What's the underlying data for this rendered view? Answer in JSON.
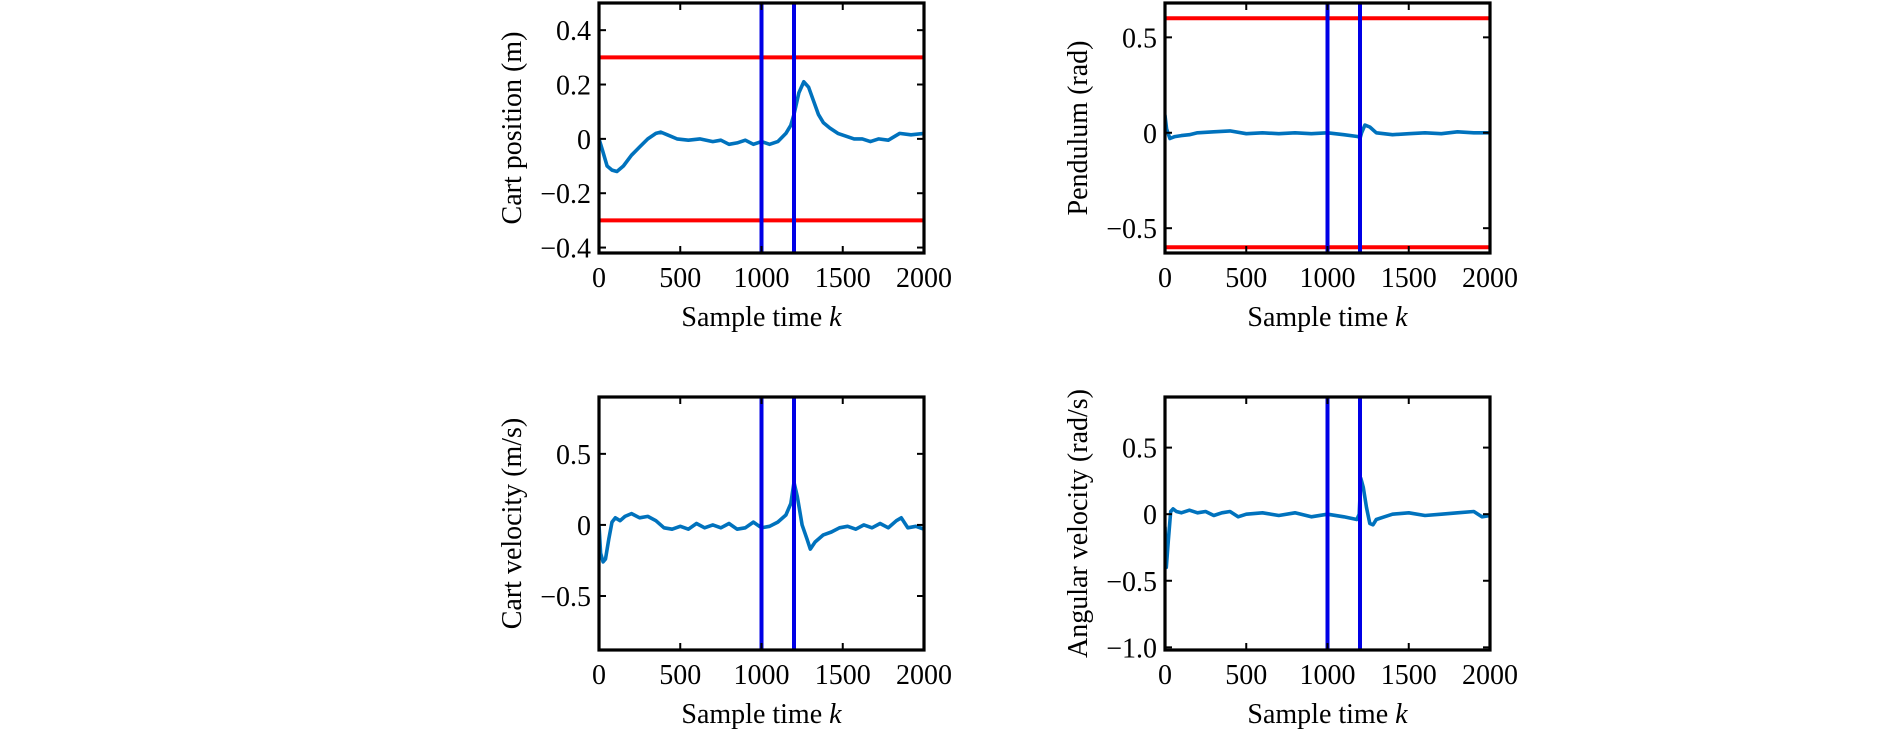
{
  "figure": {
    "colors": {
      "series": "#0072BD",
      "constraint": "#FF0000",
      "marker": "#0000E6",
      "axis": "#000000"
    }
  },
  "chart_data": [
    {
      "type": "line",
      "id": "cart-position",
      "xlabel": "Sample time",
      "xlabel_var": "k",
      "ylabel": "Cart position (m)",
      "xlim": [
        0,
        2000
      ],
      "ylim": [
        -0.42,
        0.5
      ],
      "xticks": [
        0,
        500,
        1000,
        1500,
        2000
      ],
      "xtick_labels": [
        "0",
        "500",
        "1000",
        "1500",
        "2000"
      ],
      "yticks": [
        -0.4,
        -0.2,
        0,
        0.2,
        0.4
      ],
      "ytick_labels": [
        "−0.4",
        "−0.2",
        "0",
        "0.2",
        "0.4"
      ],
      "hlines": [
        0.3,
        -0.3
      ],
      "vlines": [
        1000,
        1200
      ],
      "grid": false,
      "series": [
        {
          "x": [
            0,
            20,
            50,
            80,
            110,
            150,
            200,
            250,
            300,
            350,
            380,
            420,
            480,
            550,
            620,
            700,
            750,
            800,
            850,
            900,
            950,
            1000,
            1050,
            1100,
            1150,
            1180,
            1200,
            1230,
            1260,
            1290,
            1320,
            1350,
            1380,
            1420,
            1470,
            1520,
            1570,
            1620,
            1670,
            1720,
            1780,
            1850,
            1920,
            2000
          ],
          "y": [
            0.0,
            -0.04,
            -0.1,
            -0.115,
            -0.12,
            -0.1,
            -0.06,
            -0.03,
            0.0,
            0.02,
            0.025,
            0.015,
            0.0,
            -0.005,
            0.0,
            -0.01,
            -0.005,
            -0.02,
            -0.015,
            -0.005,
            -0.02,
            -0.01,
            -0.02,
            -0.01,
            0.02,
            0.05,
            0.09,
            0.17,
            0.21,
            0.19,
            0.14,
            0.09,
            0.06,
            0.04,
            0.02,
            0.01,
            0.0,
            0.0,
            -0.01,
            0.0,
            -0.005,
            0.02,
            0.015,
            0.02
          ]
        }
      ]
    },
    {
      "type": "line",
      "id": "pendulum",
      "xlabel": "Sample time",
      "xlabel_var": "k",
      "ylabel": "Pendulum (rad)",
      "xlim": [
        0,
        2000
      ],
      "ylim": [
        -0.63,
        0.68
      ],
      "xticks": [
        0,
        500,
        1000,
        1500,
        2000
      ],
      "xtick_labels": [
        "0",
        "500",
        "1000",
        "1500",
        "2000"
      ],
      "yticks": [
        -0.5,
        0,
        0.5
      ],
      "ytick_labels": [
        "−0.5",
        "0",
        "0.5"
      ],
      "hlines": [
        0.6,
        -0.6
      ],
      "vlines": [
        1000,
        1200
      ],
      "grid": false,
      "series": [
        {
          "x": [
            0,
            10,
            30,
            60,
            100,
            150,
            200,
            300,
            400,
            500,
            600,
            700,
            800,
            900,
            1000,
            1100,
            1190,
            1200,
            1210,
            1230,
            1260,
            1300,
            1400,
            1500,
            1600,
            1700,
            1800,
            1900,
            2000
          ],
          "y": [
            0.09,
            0.02,
            -0.03,
            -0.02,
            -0.015,
            -0.01,
            0.0,
            0.005,
            0.01,
            -0.005,
            0.0,
            -0.005,
            0.0,
            -0.005,
            0.0,
            -0.01,
            -0.02,
            -0.03,
            0.0,
            0.04,
            0.03,
            0.0,
            -0.01,
            -0.005,
            0.0,
            -0.005,
            0.005,
            0.0,
            0.0
          ]
        }
      ]
    },
    {
      "type": "line",
      "id": "cart-velocity",
      "xlabel": "Sample time",
      "xlabel_var": "k",
      "ylabel": "Cart velocity (m/s)",
      "xlim": [
        0,
        2000
      ],
      "ylim": [
        -0.88,
        0.9
      ],
      "xticks": [
        0,
        500,
        1000,
        1500,
        2000
      ],
      "xtick_labels": [
        "0",
        "500",
        "1000",
        "1500",
        "2000"
      ],
      "yticks": [
        -0.5,
        0,
        0.5
      ],
      "ytick_labels": [
        "−0.5",
        "0",
        "0.5"
      ],
      "hlines": [],
      "vlines": [
        1000,
        1200
      ],
      "grid": false,
      "series": [
        {
          "x": [
            0,
            10,
            25,
            40,
            60,
            80,
            100,
            130,
            160,
            200,
            250,
            300,
            350,
            400,
            450,
            500,
            550,
            600,
            650,
            700,
            750,
            800,
            850,
            900,
            950,
            1000,
            1050,
            1100,
            1150,
            1180,
            1200,
            1220,
            1250,
            1280,
            1300,
            1330,
            1380,
            1430,
            1480,
            1530,
            1580,
            1630,
            1680,
            1730,
            1780,
            1830,
            1860,
            1900,
            1950,
            2000
          ],
          "y": [
            0.0,
            -0.2,
            -0.26,
            -0.24,
            -0.1,
            0.02,
            0.05,
            0.03,
            0.06,
            0.08,
            0.05,
            0.06,
            0.03,
            -0.02,
            -0.03,
            -0.01,
            -0.03,
            0.01,
            -0.02,
            0.0,
            -0.02,
            0.01,
            -0.03,
            -0.02,
            0.02,
            -0.02,
            -0.01,
            0.02,
            0.07,
            0.15,
            0.3,
            0.2,
            0.0,
            -0.1,
            -0.17,
            -0.12,
            -0.07,
            -0.05,
            -0.02,
            -0.01,
            -0.03,
            0.0,
            -0.02,
            0.01,
            -0.02,
            0.03,
            0.05,
            -0.02,
            -0.01,
            -0.03
          ]
        }
      ]
    },
    {
      "type": "line",
      "id": "angular-velocity",
      "xlabel": "Sample time",
      "xlabel_var": "k",
      "ylabel": "Angular velocity (rad/s)",
      "xlim": [
        0,
        2000
      ],
      "ylim": [
        -1.02,
        0.88
      ],
      "xticks": [
        0,
        500,
        1000,
        1500,
        2000
      ],
      "xtick_labels": [
        "0",
        "500",
        "1000",
        "1500",
        "2000"
      ],
      "yticks": [
        -1,
        -0.5,
        0,
        0.5
      ],
      "ytick_labels": [
        "−1.0",
        "−0.5",
        "0",
        "0.5"
      ],
      "hlines": [],
      "vlines": [
        1000,
        1200
      ],
      "grid": false,
      "series": [
        {
          "x": [
            0,
            8,
            20,
            35,
            50,
            70,
            100,
            150,
            200,
            250,
            300,
            350,
            400,
            450,
            500,
            600,
            700,
            800,
            900,
            1000,
            1100,
            1180,
            1195,
            1205,
            1220,
            1240,
            1260,
            1280,
            1300,
            1350,
            1400,
            1500,
            1600,
            1700,
            1800,
            1900,
            1950,
            2000
          ],
          "y": [
            -0.1,
            -0.4,
            -0.2,
            0.02,
            0.04,
            0.02,
            0.01,
            0.03,
            0.01,
            0.02,
            -0.01,
            0.01,
            0.02,
            -0.02,
            0.0,
            0.01,
            -0.01,
            0.01,
            -0.02,
            0.0,
            -0.02,
            -0.04,
            0.0,
            0.27,
            0.2,
            0.05,
            -0.07,
            -0.08,
            -0.04,
            -0.02,
            0.0,
            0.01,
            -0.01,
            0.0,
            0.01,
            0.02,
            -0.02,
            -0.01
          ]
        }
      ]
    }
  ]
}
